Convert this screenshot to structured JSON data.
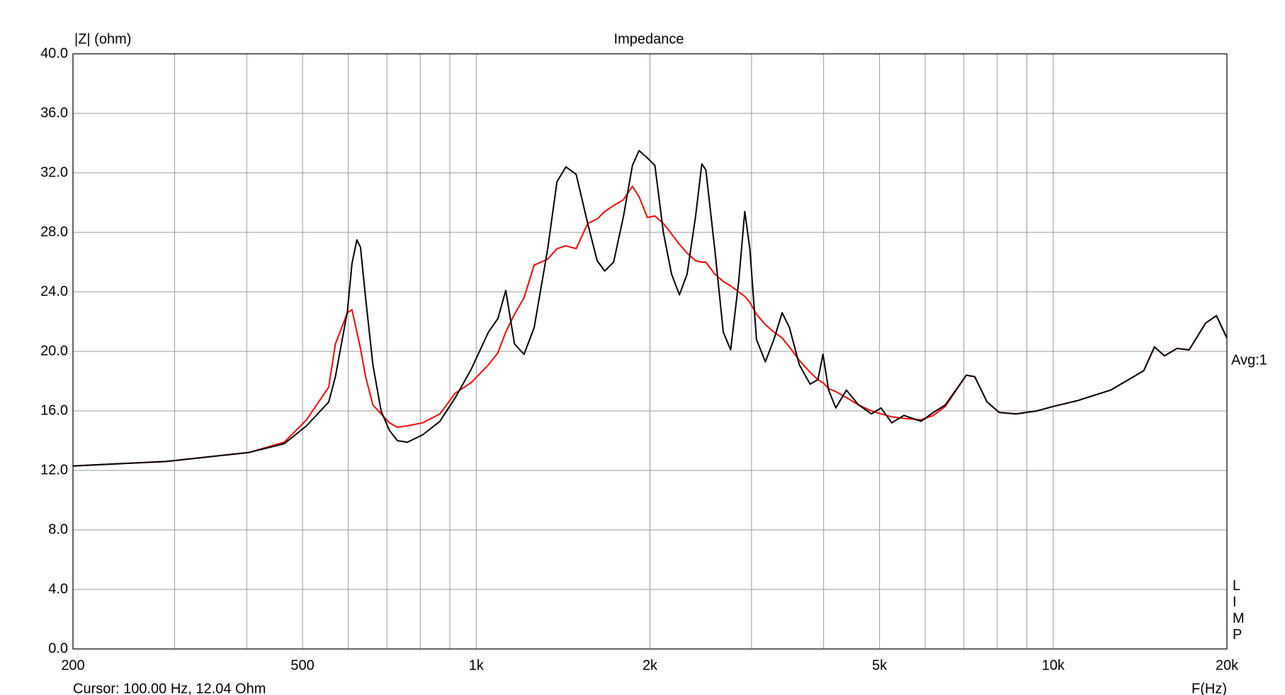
{
  "chart_data": {
    "type": "line",
    "title": "Impedance",
    "y_label": "|Z| (ohm)",
    "x_label": "F(Hz)",
    "cursor_text": "Cursor: 100.00 Hz, 12.04 Ohm",
    "annotation": "Avg:1",
    "side_label": "LIMP",
    "x_log": true,
    "grid": true,
    "xlim": [
      200,
      20000
    ],
    "xticks": [
      200,
      500,
      {
        "value": 1000,
        "label": "1k"
      },
      {
        "value": 2000,
        "label": "2k"
      },
      {
        "value": 5000,
        "label": "5k"
      },
      {
        "value": 10000,
        "label": "10k"
      },
      {
        "value": 20000,
        "label": "20k"
      }
    ],
    "x_minor_ticks": [
      300,
      400,
      600,
      700,
      800,
      900,
      3000,
      4000,
      6000,
      7000,
      8000,
      9000
    ],
    "ylim": [
      0,
      40
    ],
    "yticks": [
      {
        "value": 0,
        "label": "0.0"
      },
      {
        "value": 4,
        "label": "4.0"
      },
      {
        "value": 8,
        "label": "8.0"
      },
      {
        "value": 12,
        "label": "12.0"
      },
      {
        "value": 16,
        "label": "16.0"
      },
      {
        "value": 20,
        "label": "20.0"
      },
      {
        "value": 24,
        "label": "24.0"
      },
      {
        "value": 28,
        "label": "28.0"
      },
      {
        "value": 32,
        "label": "32.0"
      },
      {
        "value": 36,
        "label": "36.0"
      },
      {
        "value": 40,
        "label": "40.0"
      }
    ],
    "x": [
      200,
      290,
      403,
      465,
      508,
      555,
      570,
      598,
      609,
      621,
      630,
      643,
      662,
      684,
      707,
      730,
      760,
      808,
      865,
      920,
      980,
      1050,
      1090,
      1125,
      1165,
      1210,
      1260,
      1330,
      1380,
      1430,
      1490,
      1560,
      1620,
      1670,
      1730,
      1800,
      1865,
      1915,
      1980,
      2040,
      2110,
      2180,
      2250,
      2320,
      2400,
      2460,
      2500,
      2590,
      2680,
      2760,
      2850,
      2920,
      2980,
      3060,
      3170,
      3280,
      3390,
      3490,
      3630,
      3790,
      3910,
      3990,
      4080,
      4200,
      4380,
      4600,
      4840,
      5030,
      5250,
      5510,
      5900,
      6200,
      6500,
      7070,
      7310,
      7680,
      8060,
      8620,
      9370,
      10000,
      11040,
      12580,
      14350,
      14980,
      15590,
      16380,
      17200,
      18370,
      19180,
      20000
    ],
    "series": [
      {
        "color": "#000000",
        "values": [
          12.3,
          12.6,
          13.2,
          13.8,
          15.0,
          16.6,
          18.3,
          22.7,
          25.9,
          27.5,
          27.0,
          23.6,
          19.1,
          16.0,
          14.7,
          14.0,
          13.9,
          14.4,
          15.3,
          16.9,
          18.8,
          21.3,
          22.2,
          24.1,
          20.5,
          19.8,
          21.6,
          26.9,
          31.4,
          32.4,
          31.9,
          28.6,
          26.1,
          25.4,
          26.0,
          29.1,
          32.5,
          33.5,
          33.0,
          32.5,
          28.0,
          25.2,
          23.8,
          25.2,
          29.1,
          32.6,
          32.2,
          26.9,
          21.3,
          20.1,
          24.7,
          29.4,
          26.9,
          20.8,
          19.3,
          20.8,
          22.6,
          21.6,
          19.1,
          17.8,
          18.1,
          19.8,
          17.4,
          16.2,
          17.4,
          16.4,
          15.8,
          16.2,
          15.2,
          15.7,
          15.3,
          15.9,
          16.4,
          18.4,
          18.3,
          16.6,
          15.9,
          15.8,
          16.0,
          16.3,
          16.7,
          17.4,
          18.7,
          20.3,
          19.7,
          20.2,
          20.1,
          21.9,
          22.4,
          20.9
        ]
      },
      {
        "color": "#ff0000",
        "values": [
          12.3,
          12.6,
          13.2,
          13.9,
          15.4,
          17.6,
          20.5,
          22.6,
          22.8,
          21.3,
          20.2,
          18.3,
          16.4,
          15.8,
          15.2,
          14.9,
          15.0,
          15.2,
          15.8,
          17.2,
          17.9,
          19.1,
          19.9,
          21.3,
          22.5,
          23.6,
          25.8,
          26.2,
          26.9,
          27.1,
          26.9,
          28.6,
          28.9,
          29.4,
          29.8,
          30.2,
          31.1,
          30.4,
          29.0,
          29.1,
          28.6,
          27.9,
          27.2,
          26.6,
          26.1,
          26.0,
          26.0,
          25.2,
          24.7,
          24.4,
          24.0,
          23.7,
          23.3,
          22.5,
          21.8,
          21.3,
          20.9,
          20.3,
          19.4,
          18.6,
          18.1,
          17.9,
          17.5,
          17.3,
          16.9,
          16.4,
          16.0,
          15.8,
          15.6,
          15.5,
          15.4,
          15.7,
          16.3,
          18.4,
          18.3,
          16.6,
          15.9,
          15.8,
          16.0,
          16.3,
          16.7,
          17.4,
          18.7,
          20.3,
          19.7,
          20.2,
          20.1,
          21.9,
          22.4,
          20.9
        ]
      }
    ]
  }
}
